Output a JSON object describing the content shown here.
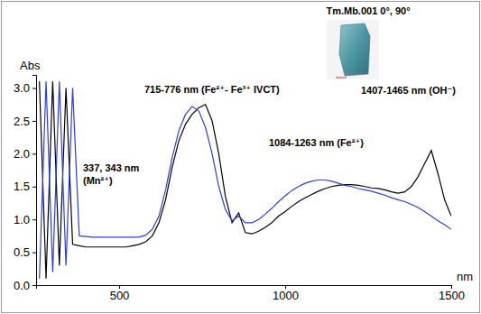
{
  "chart_data": {
    "type": "line",
    "y_label": "Abs",
    "x_label": "nm",
    "inset_label": "Tm.Mb.001 0°, 90°",
    "annotations": [
      [
        "337, 343 nm",
        "(Mn²⁺)"
      ],
      [
        "715-776 nm (Fe²⁺- Fe³⁺ IVCT)"
      ],
      [
        "1084-1263 nm (Fe²⁺)"
      ],
      [
        "1407-1465 nm (OH⁻)"
      ]
    ],
    "xlim": [
      250,
      1500
    ],
    "ylim": [
      0,
      3.2
    ],
    "xticks": [
      500,
      1000,
      1500
    ],
    "yticks": [
      {
        "value": 0,
        "label": "0.0"
      },
      {
        "value": 0.5,
        "label": "0.5"
      },
      {
        "value": 1,
        "label": "1.0"
      },
      {
        "value": 1.5,
        "label": "1.5"
      },
      {
        "value": 2,
        "label": "2.0"
      },
      {
        "value": 2.5,
        "label": "2.5"
      },
      {
        "value": 3,
        "label": "3.0"
      }
    ],
    "grid": false,
    "x": [
      260,
      280,
      300,
      320,
      340,
      360,
      380,
      400,
      420,
      440,
      460,
      480,
      500,
      520,
      540,
      560,
      580,
      600,
      620,
      640,
      660,
      680,
      700,
      720,
      740,
      760,
      780,
      800,
      820,
      840,
      860,
      880,
      900,
      920,
      940,
      960,
      980,
      1000,
      1020,
      1040,
      1060,
      1080,
      1100,
      1120,
      1140,
      1160,
      1180,
      1200,
      1220,
      1240,
      1260,
      1280,
      1300,
      1320,
      1340,
      1360,
      1380,
      1400,
      1420,
      1440,
      1460,
      1480,
      1500
    ],
    "series": [
      {
        "color": "#000000",
        "values": [
          3.1,
          0.1,
          3.1,
          0.3,
          3.0,
          0.62,
          0.6,
          0.58,
          0.58,
          0.58,
          0.58,
          0.58,
          0.58,
          0.58,
          0.6,
          0.62,
          0.66,
          0.75,
          0.95,
          1.3,
          1.8,
          2.2,
          2.45,
          2.6,
          2.7,
          2.75,
          2.5,
          2.0,
          1.35,
          0.95,
          1.1,
          0.8,
          0.78,
          0.82,
          0.88,
          0.95,
          1.05,
          1.12,
          1.2,
          1.27,
          1.33,
          1.38,
          1.43,
          1.47,
          1.5,
          1.52,
          1.53,
          1.53,
          1.52,
          1.5,
          1.48,
          1.47,
          1.45,
          1.42,
          1.4,
          1.42,
          1.5,
          1.65,
          1.85,
          2.05,
          1.7,
          1.3,
          1.05
        ]
      },
      {
        "color": "#2a3cf0",
        "values": [
          0.1,
          3.1,
          0.2,
          3.1,
          0.3,
          3.0,
          0.75,
          0.74,
          0.73,
          0.73,
          0.73,
          0.73,
          0.73,
          0.73,
          0.73,
          0.73,
          0.76,
          0.85,
          1.05,
          1.45,
          1.95,
          2.35,
          2.6,
          2.72,
          2.65,
          2.4,
          2.0,
          1.5,
          1.15,
          0.98,
          1.05,
          0.95,
          0.95,
          1.0,
          1.08,
          1.17,
          1.27,
          1.36,
          1.44,
          1.5,
          1.55,
          1.58,
          1.6,
          1.6,
          1.58,
          1.55,
          1.52,
          1.5,
          1.47,
          1.45,
          1.43,
          1.4,
          1.37,
          1.33,
          1.3,
          1.27,
          1.23,
          1.18,
          1.12,
          1.05,
          0.98,
          0.92,
          0.85
        ]
      }
    ]
  }
}
